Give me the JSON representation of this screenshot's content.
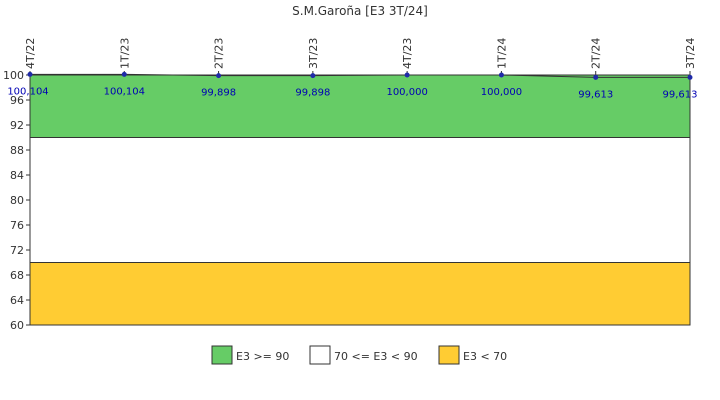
{
  "chart_data": {
    "type": "line",
    "title": "S.M.Garoña [E3 3T/24]",
    "categories": [
      "4T/22",
      "1T/23",
      "2T/23",
      "3T/23",
      "4T/23",
      "1T/24",
      "2T/24",
      "3T/24"
    ],
    "values": [
      100.104,
      100.104,
      99.898,
      99.898,
      100.0,
      100.0,
      99.613,
      99.613
    ],
    "data_labels": [
      "100,104",
      "100,104",
      "99,898",
      "99,898",
      "100,000",
      "100,000",
      "99,613",
      "99,613"
    ],
    "yticks": [
      "60",
      "64",
      "68",
      "72",
      "76",
      "80",
      "84",
      "88",
      "92",
      "96",
      "100"
    ],
    "ylim": [
      60,
      100
    ],
    "line_color": "#333333",
    "marker_color": "#1f2aa8",
    "label_color": "#0000b4",
    "bands": [
      {
        "label": "E3 >= 90",
        "from": 90,
        "to": 100,
        "color": "#66cc66"
      },
      {
        "label": "70 <= E3 < 90",
        "from": 70,
        "to": 90,
        "color": "#ffffff"
      },
      {
        "label": "E3 < 70",
        "from": 60,
        "to": 70,
        "color": "#ffcc33"
      }
    ],
    "legend": [
      "E3 >= 90",
      "70 <= E3 < 90",
      "E3 < 70"
    ],
    "legend_position": "bottom"
  }
}
